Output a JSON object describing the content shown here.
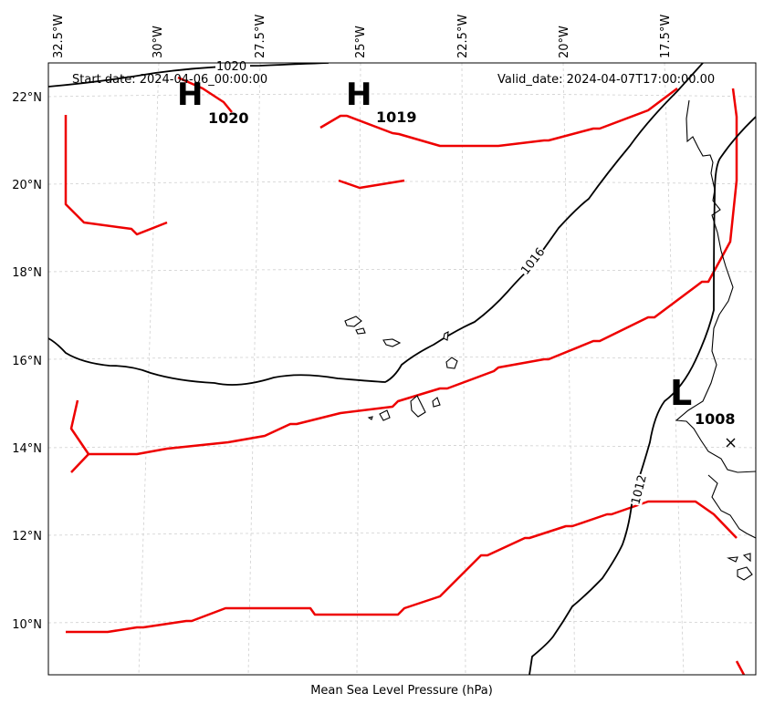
{
  "header": {
    "start_date": "Start date: 2024-04-06_00:00:00",
    "valid_date": "Valid_date: 2024-04-07T17:00:00.00"
  },
  "footer": {
    "xlabel": "Mean Sea Level Pressure (hPa)"
  },
  "axes": {
    "lon_ticks": [
      "32.5°W",
      "30°W",
      "27.5°W",
      "25°W",
      "22.5°W",
      "20°W",
      "17.5°W"
    ],
    "lat_ticks": [
      "22°N",
      "20°N",
      "18°N",
      "16°N",
      "14°N",
      "12°N",
      "10°N"
    ]
  },
  "isobar_labels": {
    "top": "1020",
    "middle": "1016",
    "lower": "1012"
  },
  "pressure_centers": [
    {
      "type": "high",
      "letter": "H",
      "value": "1020"
    },
    {
      "type": "high",
      "letter": "H",
      "value": "1019"
    },
    {
      "type": "low",
      "letter": "L",
      "value": "1008"
    }
  ],
  "colors": {
    "front": "#ee0000",
    "isobar": "#000000",
    "grid": "#cfcfcf"
  }
}
